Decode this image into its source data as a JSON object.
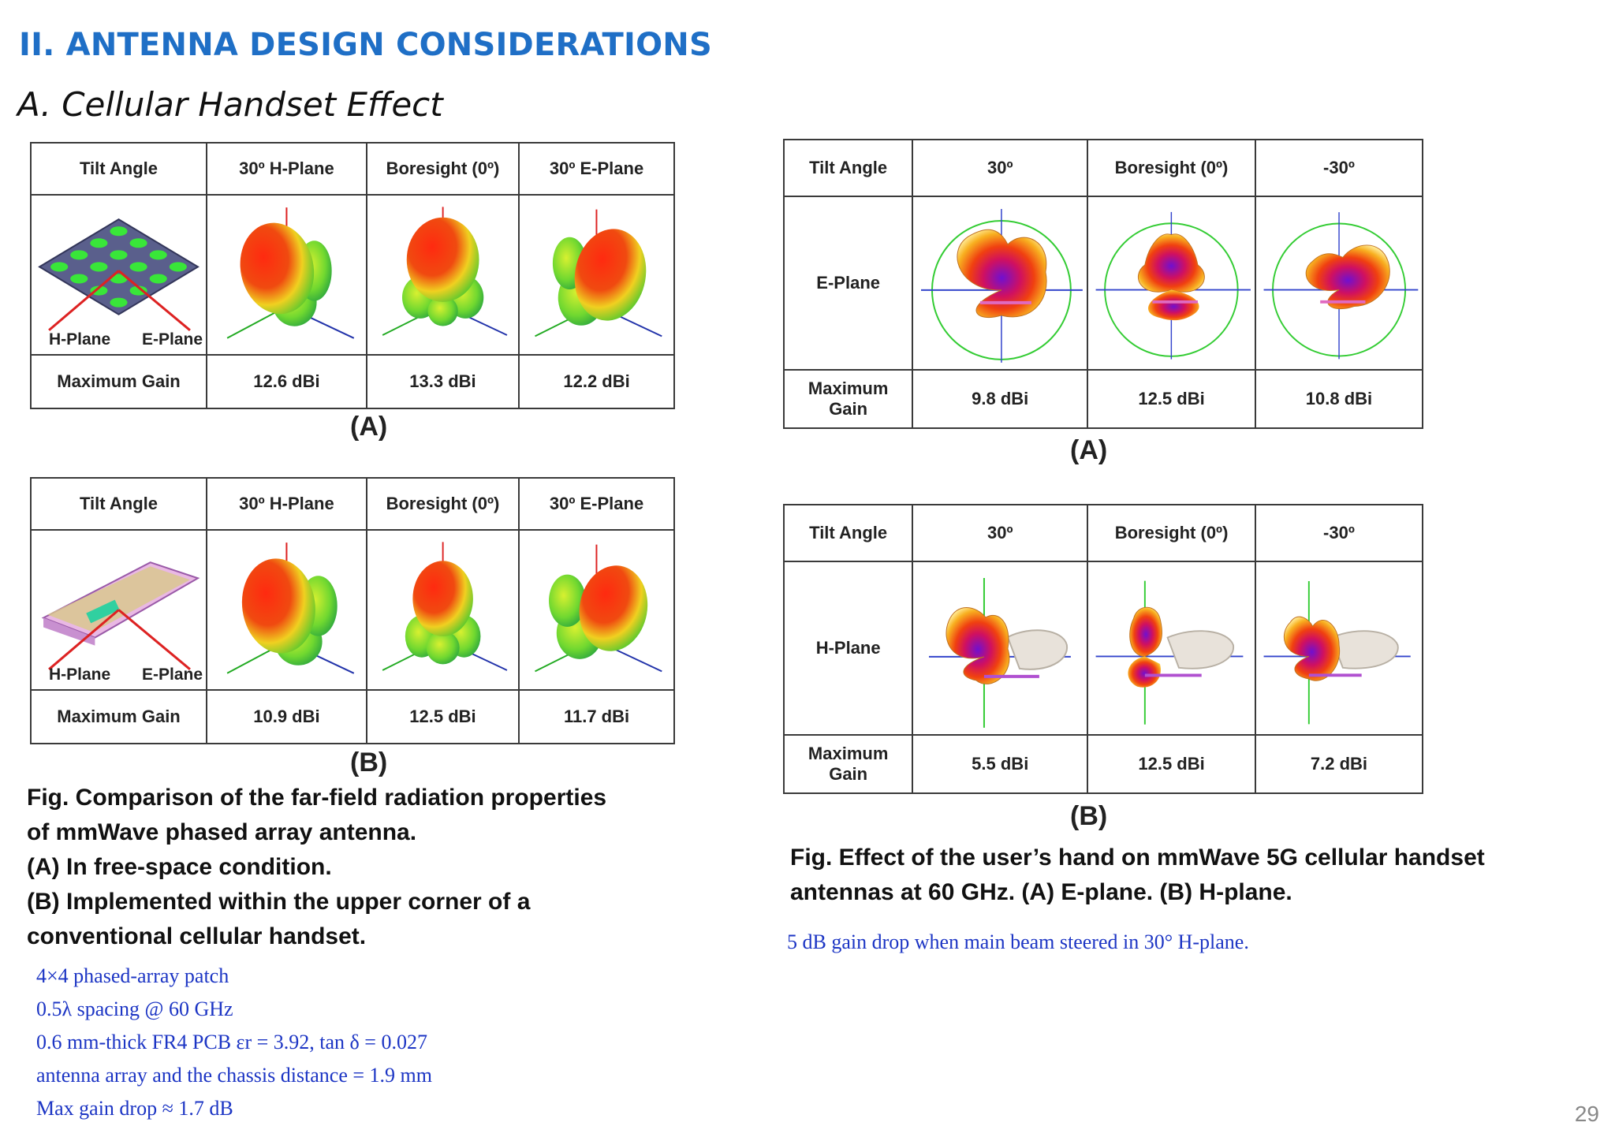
{
  "slide": {
    "title": "II. ANTENNA DESIGN CONSIDERATIONS",
    "subtitle": "A. Cellular Handset Effect",
    "page_number": "29"
  },
  "left_table_a": {
    "header": [
      "Tilt Angle",
      "30º H-Plane",
      "Boresight (0º)",
      "30º E-Plane"
    ],
    "image_labels": [
      "H-Plane",
      "E-Plane"
    ],
    "gain_label": "Maximum Gain",
    "gains": [
      "12.6 dBi",
      "13.3 dBi",
      "12.2 dBi"
    ],
    "caption": "(A)"
  },
  "left_table_b": {
    "header": [
      "Tilt Angle",
      "30º H-Plane",
      "Boresight (0º)",
      "30º E-Plane"
    ],
    "image_labels": [
      "H-Plane",
      "E-Plane"
    ],
    "gain_label": "Maximum Gain",
    "gains": [
      "10.9 dBi",
      "12.5 dBi",
      "11.7 dBi"
    ],
    "caption": "(B)"
  },
  "right_table_a": {
    "header": [
      "Tilt Angle",
      "30º",
      "Boresight (0º)",
      "-30º"
    ],
    "row_label": "E-Plane",
    "gain_label_1": "Maximum",
    "gain_label_2": "Gain",
    "gains": [
      "9.8 dBi",
      "12.5 dBi",
      "10.8 dBi"
    ],
    "caption": "(A)"
  },
  "right_table_b": {
    "header": [
      "Tilt Angle",
      "30º",
      "Boresight (0º)",
      "-30º"
    ],
    "row_label": "H-Plane",
    "gain_label_1": "Maximum",
    "gain_label_2": "Gain",
    "gains": [
      "5.5 dBi",
      "12.5 dBi",
      "7.2 dBi"
    ],
    "caption": "(B)"
  },
  "left_caption": {
    "lines": [
      "Fig. Comparison of the far-field radiation properties",
      "of mmWave phased array antenna.",
      "(A) In free-space condition.",
      "(B) Implemented within the upper corner of a",
      "conventional cellular handset."
    ]
  },
  "right_caption": {
    "lines": [
      "Fig. Effect of the user’s hand on mmWave 5G cellular handset",
      "antennas at 60 GHz. (A) E-plane. (B) H-plane."
    ]
  },
  "right_note": "5 dB gain drop when main beam steered in 30° H-plane.",
  "left_notes": [
    "4×4 phased-array patch",
    "0.5λ spacing @ 60 GHz",
    "0.6 mm-thick FR4 PCB εr = 3.92,  tan δ = 0.027",
    "antenna array and the chassis distance = 1.9 mm",
    "Max gain drop ≈ 1.7 dB"
  ],
  "colors": {
    "title_blue": "#1f6fc6",
    "note_blue": "#1c35c4",
    "pattern_red": "#e8201a",
    "pattern_green": "#3cd43c"
  }
}
